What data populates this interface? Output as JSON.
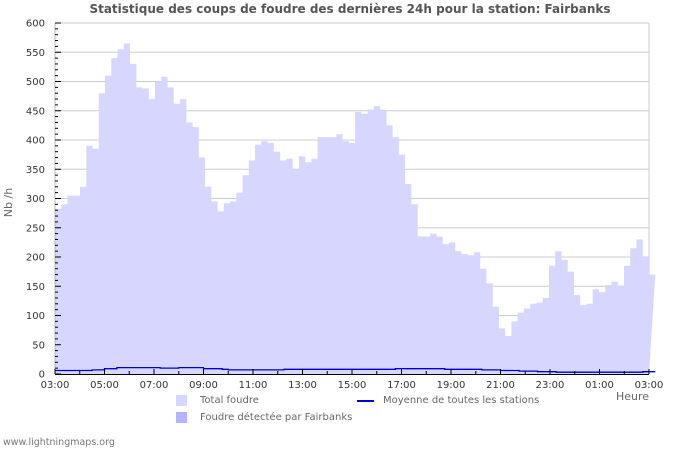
{
  "title": "Statistique des coups de foudre des dernières 24h pour la station: Fairbanks",
  "ylabel": "Nb /h",
  "xunit": "Heure",
  "footer": "www.lightningmaps.org",
  "legend": {
    "total": "Total foudre",
    "station": "Foudre détectée par Fairbanks",
    "average": "Moyenne de toutes les stations"
  },
  "colors": {
    "total": "#d6d6ff",
    "station": "#b4b4ff",
    "average": "#0000cc",
    "grid": "#cccccc",
    "axis": "#000000",
    "text": "#555555"
  },
  "chart_data": {
    "type": "area",
    "title": "Statistique des coups de foudre des dernières 24h pour la station: Fairbanks",
    "xlabel": "Heure",
    "ylabel": "Nb /h",
    "ylim": [
      0,
      600
    ],
    "yticks": [
      0,
      50,
      100,
      150,
      200,
      250,
      300,
      350,
      400,
      450,
      500,
      550,
      600
    ],
    "xticks": [
      "03:00",
      "05:00",
      "07:00",
      "09:00",
      "11:00",
      "13:00",
      "15:00",
      "17:00",
      "19:00",
      "21:00",
      "23:00",
      "01:00",
      "03:00"
    ],
    "grid": true,
    "legend_position": "bottom",
    "x_step_minutes": 15,
    "series": [
      {
        "name": "Total foudre",
        "type": "area",
        "values": [
          282,
          290,
          305,
          305,
          320,
          390,
          385,
          480,
          510,
          540,
          555,
          565,
          530,
          490,
          488,
          470,
          500,
          508,
          490,
          462,
          470,
          430,
          422,
          370,
          320,
          295,
          278,
          292,
          295,
          310,
          340,
          365,
          392,
          398,
          395,
          380,
          365,
          368,
          350,
          372,
          362,
          368,
          405,
          405,
          405,
          410,
          398,
          395,
          448,
          445,
          452,
          458,
          452,
          425,
          405,
          375,
          325,
          290,
          235,
          235,
          240,
          235,
          222,
          225,
          210,
          205,
          203,
          208,
          180,
          155,
          115,
          78,
          65,
          90,
          105,
          112,
          120,
          122,
          130,
          185,
          210,
          195,
          175,
          135,
          118,
          120,
          145,
          140,
          152,
          158,
          150,
          185,
          215,
          230,
          200,
          170,
          168
        ]
      },
      {
        "name": "Foudre détectée par Fairbanks",
        "type": "area",
        "values": [
          0,
          0,
          0,
          0,
          0,
          0,
          0,
          0,
          0,
          0,
          0,
          0,
          0,
          0,
          0,
          0,
          0,
          0,
          0,
          0,
          0,
          0,
          0,
          0,
          0,
          0,
          0,
          0,
          0,
          0,
          0,
          0,
          0,
          0,
          0,
          0,
          0,
          0,
          0,
          0,
          0,
          0,
          0,
          0,
          0,
          0,
          0,
          0,
          0,
          0,
          0,
          0,
          0,
          0,
          0,
          0,
          0,
          0,
          0,
          0,
          0,
          0,
          0,
          0,
          0,
          0,
          0,
          0,
          0,
          0,
          0,
          0,
          0,
          0,
          0,
          0,
          0,
          0,
          0,
          0,
          0,
          0,
          0,
          0,
          0,
          0,
          0,
          0,
          0,
          0,
          0,
          0,
          0,
          0,
          0,
          0,
          0
        ]
      },
      {
        "name": "Moyenne de toutes les stations",
        "type": "line",
        "values": [
          6,
          6,
          6,
          6,
          6,
          6,
          7,
          7,
          9,
          9,
          11,
          11,
          11,
          11,
          11,
          11,
          11,
          10,
          10,
          10,
          11,
          11,
          11,
          11,
          9,
          9,
          9,
          8,
          7,
          7,
          7,
          7,
          7,
          7,
          7,
          7,
          7,
          8,
          8,
          8,
          8,
          8,
          8,
          8,
          8,
          8,
          8,
          8,
          8,
          8,
          8,
          8,
          8,
          8,
          8,
          9,
          9,
          9,
          9,
          9,
          9,
          9,
          9,
          8,
          8,
          8,
          8,
          8,
          8,
          7,
          7,
          7,
          6,
          6,
          6,
          5,
          5,
          5,
          4,
          4,
          4,
          3,
          3,
          3,
          3,
          3,
          3,
          3,
          3,
          3,
          3,
          3,
          3,
          3,
          3,
          4,
          4
        ]
      }
    ]
  }
}
